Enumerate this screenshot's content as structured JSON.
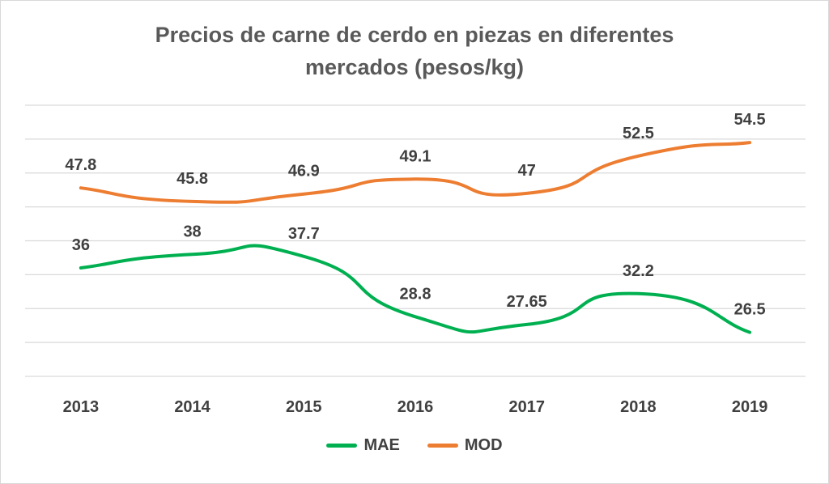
{
  "chart_data": {
    "type": "line",
    "title_lines": [
      "Precios de carne de cerdo en piezas en diferentes",
      "mercados (pesos/kg)"
    ],
    "categories": [
      "2013",
      "2014",
      "2015",
      "2016",
      "2017",
      "2018",
      "2019"
    ],
    "series": [
      {
        "name": "MAE",
        "color": "#00b050",
        "values": [
          36,
          38,
          37.7,
          28.8,
          27.65,
          32.2,
          26.5
        ],
        "labels": [
          "36",
          "38",
          "37.7",
          "28.8",
          "27.65",
          "32.2",
          "26.5"
        ]
      },
      {
        "name": "MOD",
        "color": "#ed7d31",
        "values": [
          47.8,
          45.8,
          46.9,
          49.1,
          47,
          52.5,
          54.5
        ],
        "labels": [
          "47.8",
          "45.8",
          "46.9",
          "49.1",
          "47",
          "52.5",
          "54.5"
        ]
      }
    ],
    "ylim": [
      20,
      60
    ],
    "y_tick_step": 5,
    "grid": true,
    "legend_position": "bottom",
    "smooth": true
  }
}
